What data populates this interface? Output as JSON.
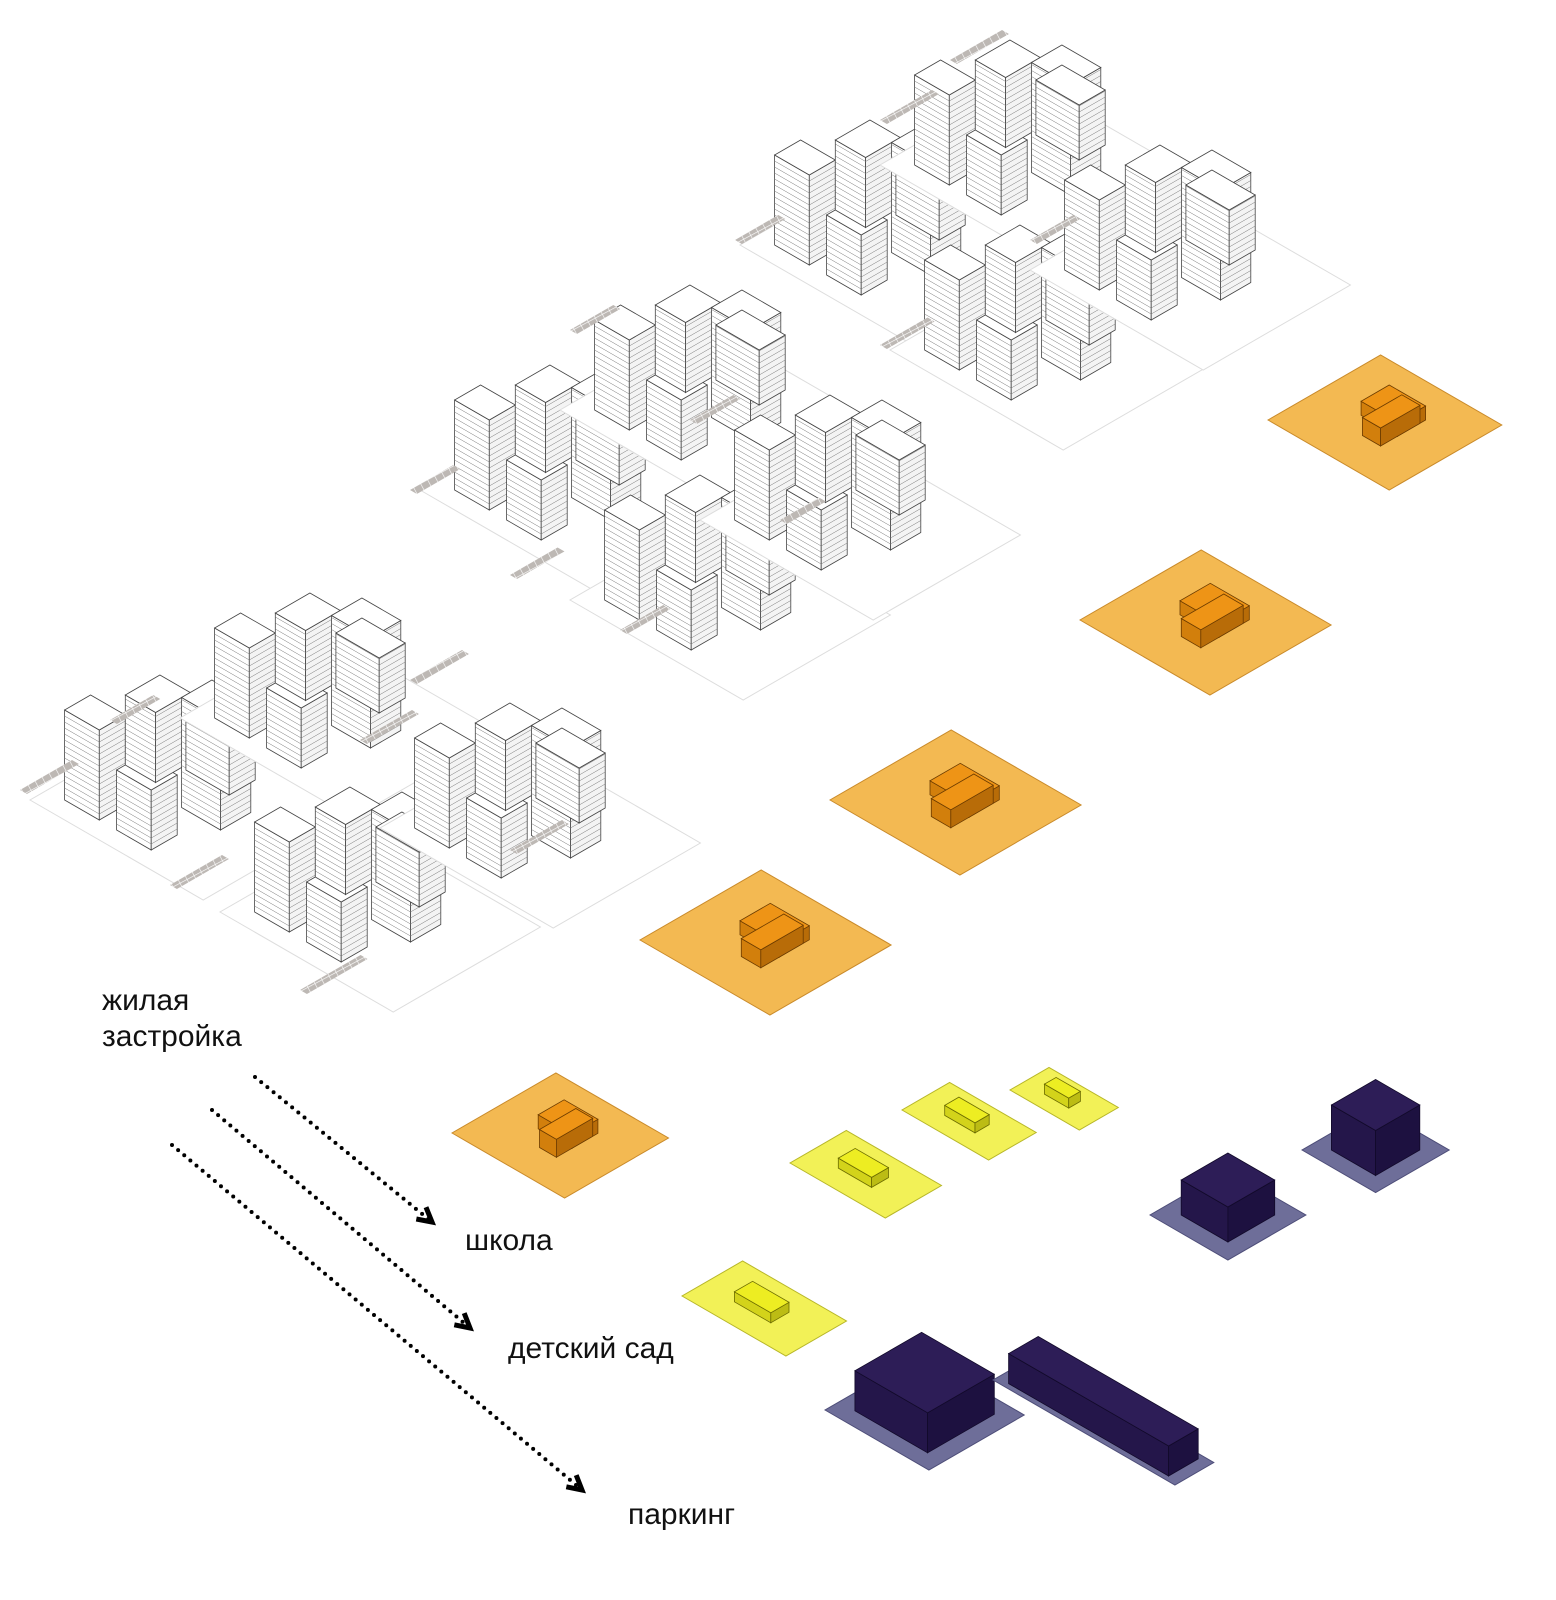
{
  "labels": {
    "residential_line1": "жилая",
    "residential_line2": "застройка",
    "school": "школа",
    "kindergarten": "детский сад",
    "parking": "паркинг"
  },
  "colors": {
    "residential_fill": "#ffffff",
    "residential_stroke": "#555555",
    "parking_lot_tiles": "#bdb8b4",
    "school_plot": "#f3b952",
    "school_building": "#ee9416",
    "kindergarten_plot": "#f2f157",
    "kindergarten_building": "#eded22",
    "parking_plot": "#6e6e99",
    "parking_building": "#2d1d57",
    "dotted_arrow": "#000000"
  },
  "icons": {
    "arrow": "dotted-arrow-icon"
  }
}
